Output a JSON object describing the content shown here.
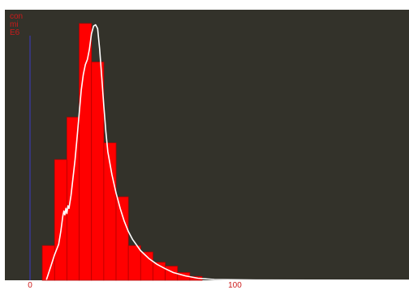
{
  "chart_data": {
    "type": "bar",
    "ylabel_lines": [
      "con",
      "mi",
      "E6"
    ],
    "x_ticks": [
      {
        "value": 0,
        "label": "0"
      },
      {
        "value": 100,
        "label": "100"
      }
    ],
    "xlim": [
      0,
      185
    ],
    "ylim": [
      0,
      1.0
    ],
    "bin_width": 6,
    "bins": [
      {
        "x0": 6,
        "value": 0.135
      },
      {
        "x0": 12,
        "value": 0.47
      },
      {
        "x0": 18,
        "value": 0.635
      },
      {
        "x0": 24,
        "value": 1.0
      },
      {
        "x0": 30,
        "value": 0.85
      },
      {
        "x0": 36,
        "value": 0.535
      },
      {
        "x0": 42,
        "value": 0.325
      },
      {
        "x0": 48,
        "value": 0.135
      },
      {
        "x0": 54,
        "value": 0.11
      },
      {
        "x0": 60,
        "value": 0.07
      },
      {
        "x0": 66,
        "value": 0.055
      },
      {
        "x0": 72,
        "value": 0.03
      },
      {
        "x0": 78,
        "value": 0.015
      }
    ],
    "curve": [
      [
        8,
        0.002
      ],
      [
        10,
        0.05
      ],
      [
        12,
        0.1
      ],
      [
        14,
        0.14
      ],
      [
        15,
        0.19
      ],
      [
        16,
        0.25
      ],
      [
        16.5,
        0.27
      ],
      [
        17,
        0.255
      ],
      [
        17.5,
        0.28
      ],
      [
        18,
        0.26
      ],
      [
        18.5,
        0.29
      ],
      [
        19,
        0.28
      ],
      [
        20,
        0.33
      ],
      [
        21,
        0.4
      ],
      [
        22,
        0.47
      ],
      [
        23,
        0.56
      ],
      [
        24,
        0.65
      ],
      [
        25,
        0.74
      ],
      [
        26,
        0.8
      ],
      [
        27,
        0.84
      ],
      [
        28,
        0.86
      ],
      [
        29,
        0.9
      ],
      [
        30,
        0.96
      ],
      [
        31,
        0.99
      ],
      [
        32,
        0.995
      ],
      [
        33,
        0.98
      ],
      [
        34,
        0.9
      ],
      [
        35,
        0.79
      ],
      [
        36,
        0.68
      ],
      [
        37,
        0.58
      ],
      [
        38,
        0.5
      ],
      [
        40,
        0.41
      ],
      [
        42,
        0.34
      ],
      [
        44,
        0.28
      ],
      [
        46,
        0.23
      ],
      [
        48,
        0.19
      ],
      [
        50,
        0.16
      ],
      [
        54,
        0.115
      ],
      [
        58,
        0.085
      ],
      [
        62,
        0.062
      ],
      [
        66,
        0.045
      ],
      [
        70,
        0.03
      ],
      [
        76,
        0.017
      ],
      [
        82,
        0.008
      ],
      [
        90,
        0.003
      ],
      [
        110,
        0.001
      ],
      [
        140,
        0.0005
      ],
      [
        185,
        0.0003
      ]
    ],
    "colors": {
      "background": "#33322a",
      "bars": "#ff0000",
      "bar_edges": "#b40000",
      "curve": "#ffffff",
      "y_axis": "#3a3aa8",
      "text": "#cc1a1a"
    }
  }
}
